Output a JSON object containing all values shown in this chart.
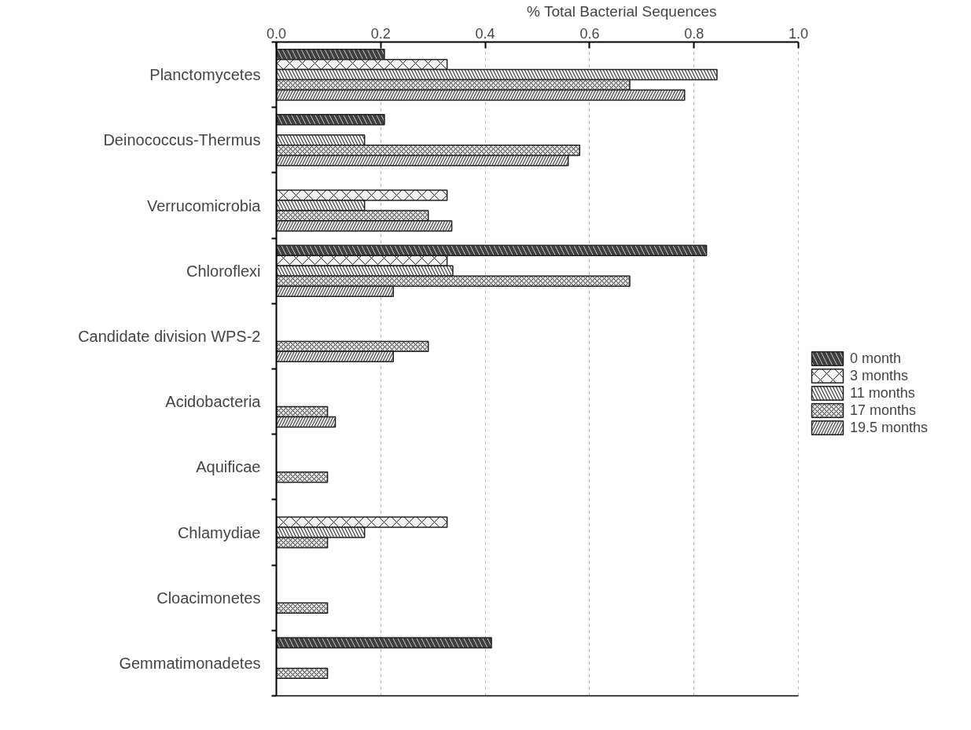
{
  "chart_data": {
    "type": "bar",
    "orientation": "horizontal",
    "xlabel": "% Total Bacterial Sequences",
    "categories": [
      "Planctomycetes",
      "Deinococcus-Thermus",
      "Verrucomicrobia",
      "Chloroflexi",
      "Candidate division WPS-2",
      "Acidobacteria",
      "Aquificae",
      "Chlamydiae",
      "Cloacimonetes",
      "Gemmatimonadetes"
    ],
    "series": [
      {
        "name": "0 month",
        "color": "#404040",
        "values": [
          0.207,
          0.207,
          null,
          0.824,
          null,
          null,
          null,
          null,
          null,
          0.412
        ]
      },
      {
        "name": "3 months",
        "color": "#f4f4f4",
        "values": [
          0.327,
          null,
          0.327,
          0.327,
          null,
          null,
          null,
          0.327,
          null,
          null
        ]
      },
      {
        "name": "11 months",
        "color": "#ececec",
        "values": [
          0.844,
          0.169,
          0.169,
          0.338,
          null,
          null,
          null,
          0.169,
          null,
          null
        ]
      },
      {
        "name": "17 months",
        "color": "#e2e2e2",
        "values": [
          0.677,
          0.581,
          0.291,
          0.677,
          0.291,
          0.098,
          0.098,
          0.098,
          0.098,
          0.098
        ]
      },
      {
        "name": "19.5 months",
        "color": "#e8e8e8",
        "values": [
          0.782,
          0.559,
          0.336,
          0.224,
          0.224,
          0.113,
          null,
          null,
          null,
          null
        ]
      }
    ],
    "xlim": [
      0,
      1.0
    ],
    "xticks": [
      {
        "value": 0,
        "label": "0.0"
      },
      0.2,
      0.4,
      0.6,
      0.8,
      {
        "value": 1.0,
        "label": "1.0"
      }
    ],
    "grid": "x",
    "legend": "right"
  }
}
